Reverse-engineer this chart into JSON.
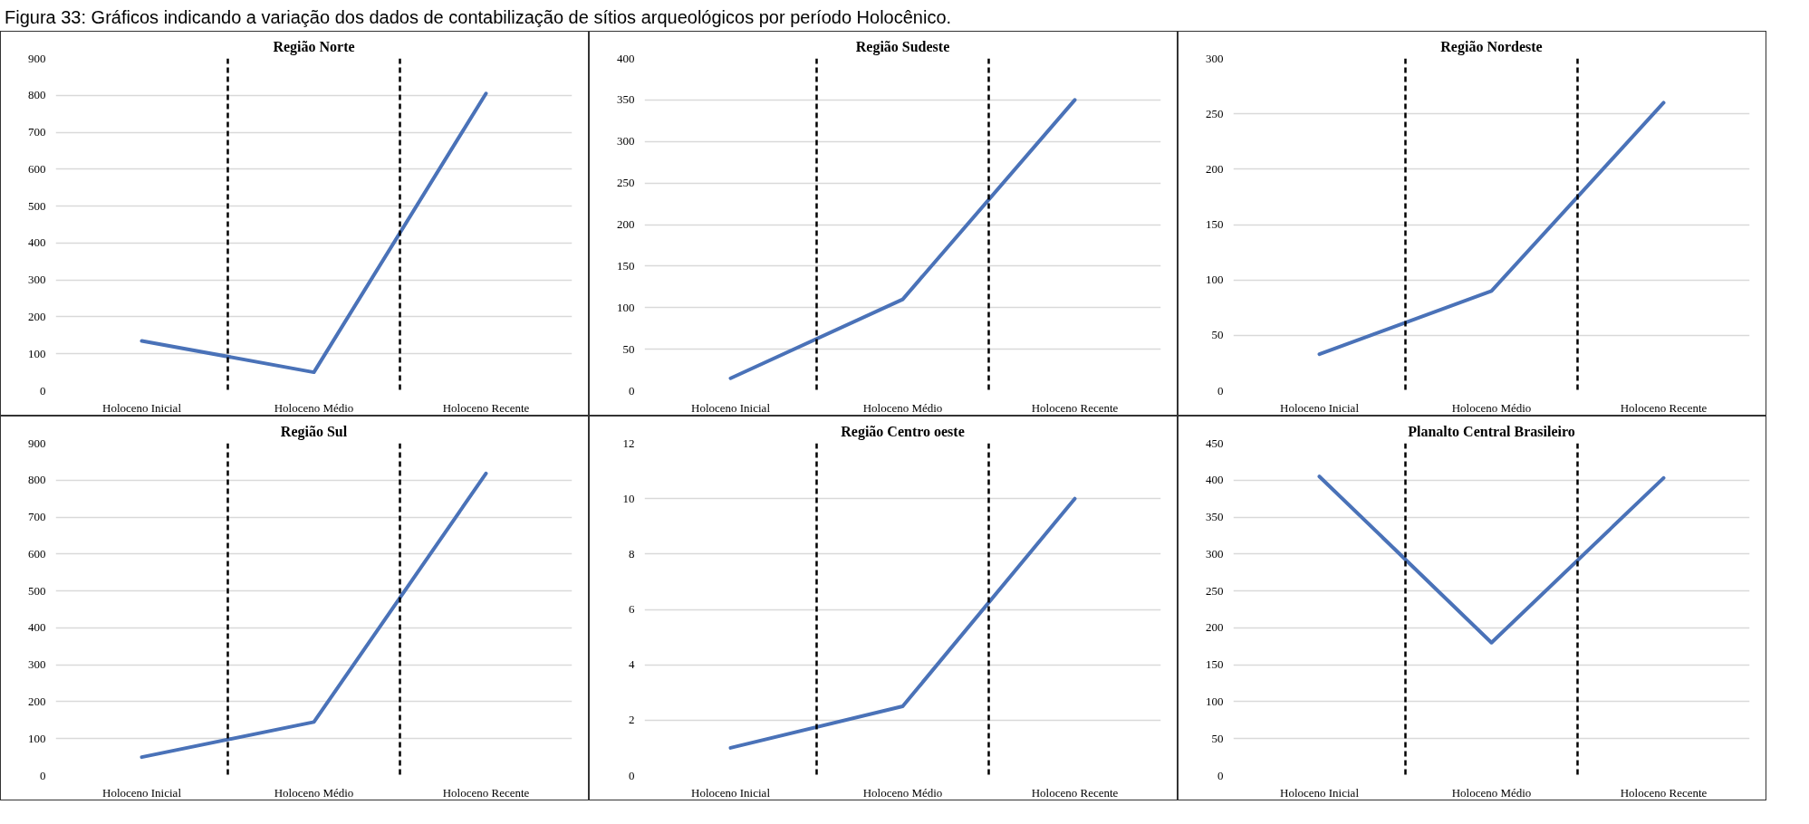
{
  "chart_data": [
    {
      "type": "line",
      "title": "Região Norte",
      "annotations": [
        "Figura 33: Gráficos indicando a variação dos dados de contabilização de sítios arqueológicos por período Holocênico."
      ],
      "categories": [
        "Holoceno Inicial",
        "Holoceno Médio",
        "Holoceno Recente"
      ],
      "values": [
        135,
        50,
        805
      ],
      "color": "#4a72b8",
      "ylim": [
        0,
        900
      ],
      "yticks": [
        0,
        100,
        200,
        300,
        400,
        500,
        600,
        700,
        800,
        900
      ],
      "grid": "y"
    },
    {
      "type": "line",
      "title": "Região Sudeste",
      "categories": [
        "Holoceno Inicial",
        "Holoceno Médio",
        "Holoceno Recente"
      ],
      "values": [
        15,
        110,
        350
      ],
      "color": "#4a72b8",
      "ylim": [
        0,
        400
      ],
      "yticks": [
        0,
        50,
        100,
        150,
        200,
        250,
        300,
        350,
        400
      ],
      "grid": "y"
    },
    {
      "type": "line",
      "title": "Região Nordeste",
      "categories": [
        "Holoceno Inicial",
        "Holoceno Médio",
        "Holoceno Recente"
      ],
      "values": [
        33,
        90,
        260
      ],
      "color": "#4a72b8",
      "ylim": [
        0,
        300
      ],
      "yticks": [
        0,
        50,
        100,
        150,
        200,
        250,
        300
      ],
      "grid": "y"
    },
    {
      "type": "line",
      "title": "Região Sul",
      "categories": [
        "Holoceno Inicial",
        "Holoceno Médio",
        "Holoceno Recente"
      ],
      "values": [
        50,
        145,
        818
      ],
      "color": "#4a72b8",
      "ylim": [
        0,
        900
      ],
      "yticks": [
        0,
        100,
        200,
        300,
        400,
        500,
        600,
        700,
        800,
        900
      ],
      "grid": "y"
    },
    {
      "type": "line",
      "title": "Região Centro oeste",
      "categories": [
        "Holoceno Inicial",
        "Holoceno Médio",
        "Holoceno Recente"
      ],
      "values": [
        1,
        2.5,
        10
      ],
      "color": "#4a72b8",
      "ylim": [
        0,
        12
      ],
      "yticks": [
        0,
        2,
        4,
        6,
        8,
        10,
        12
      ],
      "grid": "y"
    },
    {
      "type": "line",
      "title": "Planalto Central Brasileiro",
      "categories": [
        "Holoceno Inicial",
        "Holoceno Médio",
        "Holoceno Recente"
      ],
      "values": [
        405,
        180,
        403
      ],
      "color": "#4a72b8",
      "ylim": [
        0,
        450
      ],
      "yticks": [
        0,
        50,
        100,
        150,
        200,
        250,
        300,
        350,
        400,
        450
      ],
      "grid": "y"
    }
  ]
}
